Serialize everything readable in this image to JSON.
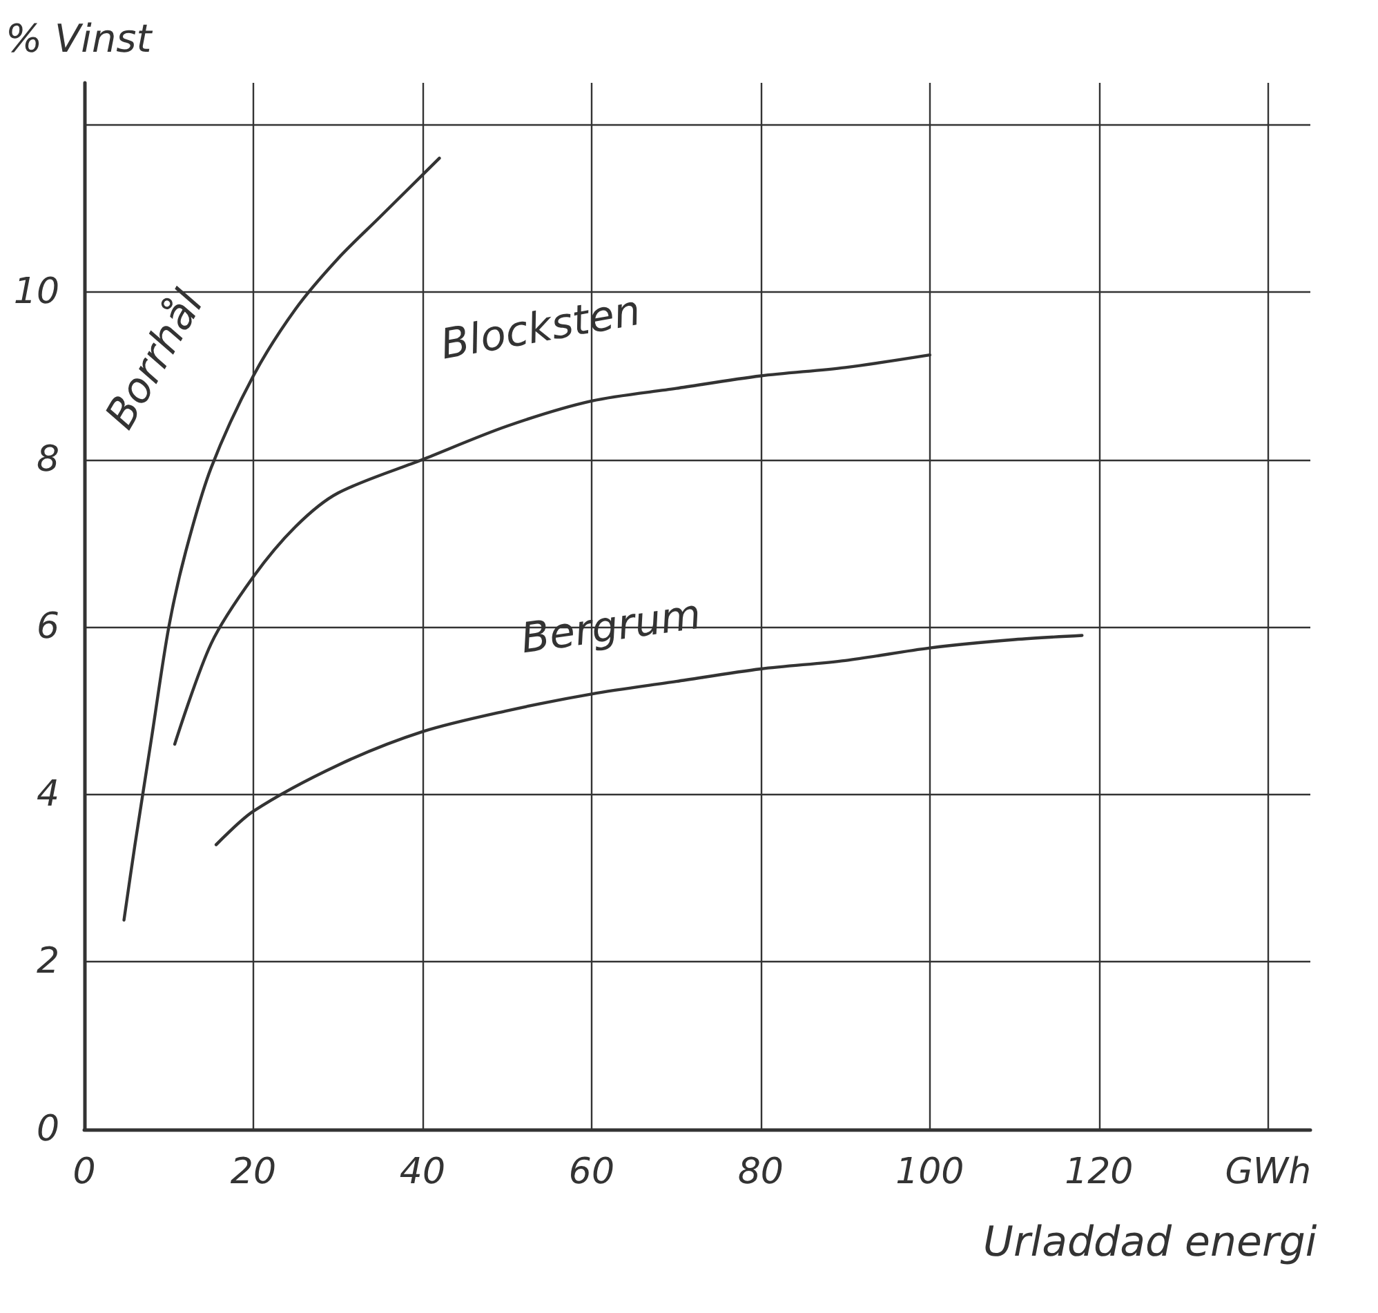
{
  "chart_data": {
    "type": "line",
    "xlabel": "Urladdad energi",
    "ylabel": "% Vinst",
    "xlim": [
      0,
      145
    ],
    "ylim": [
      0,
      12.5
    ],
    "xticks": [
      0,
      20,
      40,
      60,
      80,
      100,
      120,
      {
        "value": 140,
        "label": "GWh"
      }
    ],
    "yticks": [
      0,
      2,
      4,
      6,
      8,
      10,
      {
        "value": 12,
        "label": null
      }
    ],
    "grid": true,
    "legend": false,
    "marker": "none",
    "line_style": "solid",
    "series": [
      {
        "name": "Borrhål",
        "color": "#333333",
        "x": [
          4.7,
          6,
          8,
          10,
          12,
          15,
          20,
          25,
          30,
          35,
          42
        ],
        "values": [
          2.5,
          3.4,
          4.7,
          6.0,
          6.9,
          7.9,
          9.0,
          9.8,
          10.4,
          10.9,
          11.6
        ]
      },
      {
        "name": "Blocksten",
        "color": "#333333",
        "x": [
          10.7,
          15,
          20,
          25,
          30,
          40,
          50,
          60,
          70,
          80,
          90,
          100
        ],
        "values": [
          4.6,
          5.8,
          6.6,
          7.2,
          7.6,
          8.0,
          8.4,
          8.7,
          8.85,
          9.0,
          9.1,
          9.25
        ]
      },
      {
        "name": "Bergrum",
        "color": "#333333",
        "x": [
          15.6,
          20,
          30,
          40,
          50,
          60,
          70,
          80,
          90,
          100,
          110,
          118
        ],
        "values": [
          3.4,
          3.8,
          4.35,
          4.75,
          5.0,
          5.2,
          5.35,
          5.5,
          5.6,
          5.75,
          5.85,
          5.9
        ]
      }
    ]
  }
}
